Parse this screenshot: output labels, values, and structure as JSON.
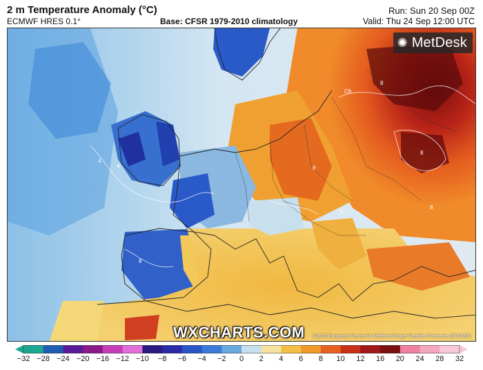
{
  "header": {
    "title": "2 m Temperature Anomaly (°C)",
    "model": "ECMWF HRES 0.1°",
    "base": "Base: CFSR 1979-2010 climatology",
    "run": "Run: Sun 20 Sep 00Z",
    "valid": "Valid: Thu 24 Sep 12:00 UTC"
  },
  "map": {
    "logo": "MetDesk",
    "logo_icon": "metdesk-star-icon",
    "watermark": "WXCHARTS.COM",
    "copyright": "©2020 European Centre for Medium-Range Weather Forecasts (ECMWF)",
    "contour_labels": [
      "C6",
      "8",
      "8",
      "8",
      "4",
      "4",
      "8",
      "8",
      "8"
    ]
  },
  "colorbar": {
    "ticks": [
      "−32",
      "−28",
      "−24",
      "−20",
      "−16",
      "−12",
      "−10",
      "−8",
      "−6",
      "−4",
      "−2",
      "0",
      "2",
      "4",
      "6",
      "8",
      "10",
      "12",
      "16",
      "20",
      "24",
      "28",
      "32"
    ],
    "colors": [
      "#1aa890",
      "#1f5db5",
      "#5a1a9a",
      "#8a1a8a",
      "#c83cb8",
      "#e070d8",
      "#2a1a80",
      "#2a2aa8",
      "#2a55c8",
      "#3a7ad8",
      "#6aa8e0",
      "#c8e0ee",
      "#f6e2a0",
      "#f2c048",
      "#f09a28",
      "#e86020",
      "#c83018",
      "#a01818",
      "#7a1010",
      "#f080a0",
      "#f4a8c0",
      "#f8c8d8"
    ]
  }
}
